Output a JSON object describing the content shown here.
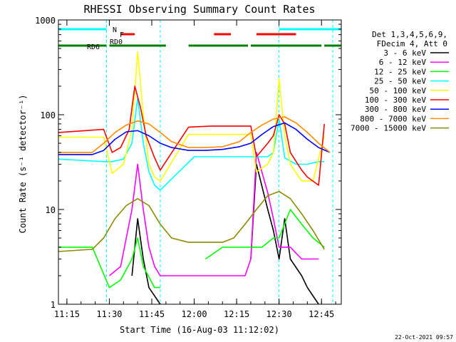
{
  "chart_data": {
    "type": "line",
    "title": "RHESSI Observing Summary Count Rates",
    "xlabel": "Start Time (16-Aug-03 11:12:02)",
    "ylabel": "Count Rate (s⁻¹ detector⁻¹)",
    "yscale": "log",
    "ylim": [
      1,
      1000
    ],
    "xlim": [
      "11:12",
      "12:52"
    ],
    "x_ticks": [
      "11:15",
      "11:30",
      "11:45",
      "12:00",
      "12:15",
      "12:30",
      "12:45"
    ],
    "y_ticks": [
      "1",
      "10",
      "100",
      "1000"
    ],
    "grid": false,
    "legend_position": "right",
    "legend_header": [
      "Det 1,3,4,5,6,9,",
      "FDecim 4, Att 0"
    ],
    "series": [
      {
        "name": "3 - 6 keV",
        "color": "#000000",
        "x": [
          "11:12",
          "11:28",
          "11:38",
          "11:40",
          "11:42",
          "11:44",
          "11:48",
          "11:52",
          "12:00",
          "12:08",
          "12:16",
          "12:20",
          "12:22",
          "12:26",
          "12:28",
          "12:30",
          "12:32",
          "12:34",
          "12:38",
          "12:40",
          "12:44",
          "12:46"
        ],
        "y": [
          null,
          null,
          2,
          8,
          3,
          1.5,
          1,
          null,
          null,
          null,
          null,
          3,
          30,
          10,
          6,
          3,
          8,
          3,
          2,
          1.5,
          1,
          null
        ]
      },
      {
        "name": "6 - 12 keV",
        "color": "#ff00ff",
        "x": [
          "11:12",
          "11:28",
          "11:30",
          "11:34",
          "11:38",
          "11:40",
          "11:42",
          "11:44",
          "11:46",
          "11:48",
          "11:52",
          "11:58",
          "12:02",
          "12:04",
          "12:06",
          "12:12",
          "12:18",
          "12:20",
          "12:22",
          "12:26",
          "12:28",
          "12:30",
          "12:34",
          "12:38",
          "12:44"
        ],
        "y": [
          null,
          null,
          2,
          2.5,
          10,
          30,
          10,
          4,
          2.5,
          2,
          2,
          2,
          2,
          2,
          2,
          2,
          2,
          3,
          40,
          15,
          8,
          4,
          4,
          3,
          3
        ]
      },
      {
        "name": "12 - 25 keV",
        "color": "#00ff00",
        "x": [
          "11:12",
          "11:24",
          "11:30",
          "11:34",
          "11:38",
          "11:40",
          "11:42",
          "11:46",
          "11:48",
          "11:58",
          "12:04",
          "12:10",
          "12:14",
          "12:20",
          "12:24",
          "12:28",
          "12:30",
          "12:34",
          "12:38",
          "12:42",
          "12:46"
        ],
        "y": [
          4,
          4,
          1.5,
          1.8,
          3,
          5,
          2.5,
          1.5,
          1.5,
          null,
          3,
          4,
          4,
          4,
          4,
          5,
          5,
          10,
          7,
          5,
          4
        ]
      },
      {
        "name": "25 - 50 keV",
        "color": "#00ffff",
        "x": [
          "11:12",
          "11:28",
          "11:31",
          "11:35",
          "11:38",
          "11:40",
          "11:42",
          "11:44",
          "11:46",
          "11:48",
          "12:00",
          "12:08",
          "12:14",
          "12:18",
          "12:22",
          "12:26",
          "12:28",
          "12:30",
          "12:32",
          "12:36",
          "12:40",
          "12:44",
          "12:46"
        ],
        "y": [
          34,
          32,
          32,
          34,
          50,
          150,
          50,
          25,
          18,
          16,
          36,
          36,
          36,
          36,
          36,
          36,
          40,
          90,
          35,
          30,
          30,
          32,
          32
        ]
      },
      {
        "name": "50 - 100 keV",
        "color": "#ffff00",
        "x": [
          "11:12",
          "11:28",
          "11:31",
          "11:35",
          "11:38",
          "11:40",
          "11:42",
          "11:44",
          "11:46",
          "11:48",
          "11:58",
          "12:06",
          "12:14",
          "12:18",
          "12:20",
          "12:22",
          "12:26",
          "12:28",
          "12:30",
          "12:32",
          "12:34",
          "12:38",
          "12:42",
          "12:46"
        ],
        "y": [
          58,
          58,
          24,
          30,
          70,
          460,
          100,
          30,
          22,
          20,
          62,
          62,
          62,
          62,
          62,
          25,
          30,
          40,
          240,
          60,
          30,
          20,
          20,
          60
        ]
      },
      {
        "name": "100 - 300 keV",
        "color": "#ff0000",
        "x": [
          "11:12",
          "11:28",
          "11:31",
          "11:34",
          "11:37",
          "11:39",
          "11:41",
          "11:43",
          "11:46",
          "11:48",
          "11:58",
          "12:06",
          "12:14",
          "12:18",
          "12:20",
          "12:22",
          "12:26",
          "12:28",
          "12:30",
          "12:32",
          "12:34",
          "12:38",
          "12:40",
          "12:44",
          "12:46"
        ],
        "y": [
          65,
          70,
          40,
          45,
          70,
          200,
          120,
          60,
          35,
          26,
          74,
          76,
          76,
          76,
          76,
          36,
          50,
          60,
          100,
          80,
          40,
          26,
          22,
          18,
          80
        ]
      },
      {
        "name": "300 - 800 keV",
        "color": "#0000ff",
        "x": [
          "11:12",
          "11:24",
          "11:28",
          "11:32",
          "11:36",
          "11:40",
          "11:44",
          "11:48",
          "11:52",
          "11:58",
          "12:04",
          "12:10",
          "12:16",
          "12:20",
          "12:24",
          "12:28",
          "12:32",
          "12:36",
          "12:40",
          "12:44",
          "12:48"
        ],
        "y": [
          38,
          38,
          42,
          55,
          66,
          68,
          60,
          50,
          45,
          42,
          42,
          43,
          46,
          50,
          62,
          75,
          82,
          70,
          55,
          45,
          40
        ]
      },
      {
        "name": "800 - 7000 keV",
        "color": "#ff8c00",
        "x": [
          "11:12",
          "11:24",
          "11:28",
          "11:32",
          "11:36",
          "11:40",
          "11:44",
          "11:48",
          "11:52",
          "11:58",
          "12:04",
          "12:10",
          "12:16",
          "12:20",
          "12:24",
          "12:28",
          "12:32",
          "12:36",
          "12:40",
          "12:44",
          "12:48"
        ],
        "y": [
          40,
          40,
          50,
          65,
          78,
          86,
          80,
          65,
          52,
          45,
          45,
          46,
          52,
          65,
          78,
          90,
          95,
          82,
          65,
          50,
          40
        ]
      },
      {
        "name": "7000 - 15000 keV",
        "color": "#8b8b00",
        "x": [
          "11:12",
          "11:24",
          "11:28",
          "11:32",
          "11:36",
          "11:40",
          "11:44",
          "11:48",
          "11:52",
          "11:58",
          "12:04",
          "12:10",
          "12:14",
          "12:18",
          "12:22",
          "12:26",
          "12:30",
          "12:34",
          "12:38",
          "12:42",
          "12:46"
        ],
        "y": [
          3.6,
          3.8,
          5,
          8,
          11,
          13,
          11,
          7,
          5,
          4.5,
          4.5,
          4.5,
          5,
          7,
          10,
          14,
          15.5,
          13,
          9,
          6,
          3.8
        ]
      }
    ],
    "state_bars": [
      {
        "label": "N",
        "color": "#00ffff",
        "segments": [
          [
            "11:12",
            "11:29"
          ],
          [
            "12:30",
            "12:52"
          ]
        ]
      },
      {
        "label": "F",
        "color": "#ff0000",
        "segments": [
          [
            "11:34",
            "11:39"
          ],
          [
            "12:07",
            "12:13"
          ],
          [
            "12:22",
            "12:36"
          ]
        ]
      },
      {
        "label": "RD0",
        "color": "",
        "segments": []
      },
      {
        "label": "RD6",
        "color": "#008000",
        "segments": [
          [
            "11:12",
            "11:29"
          ],
          [
            "11:30",
            "11:50"
          ],
          [
            "11:58",
            "12:19"
          ],
          [
            "12:20",
            "12:45"
          ],
          [
            "12:46",
            "12:52"
          ]
        ]
      }
    ],
    "vertical_markers": {
      "color": "#00ffff",
      "times": [
        "11:29",
        "11:48",
        "12:30",
        "12:49"
      ]
    }
  },
  "footer": {
    "timestamp": "22-Oct-2021 09:57"
  }
}
